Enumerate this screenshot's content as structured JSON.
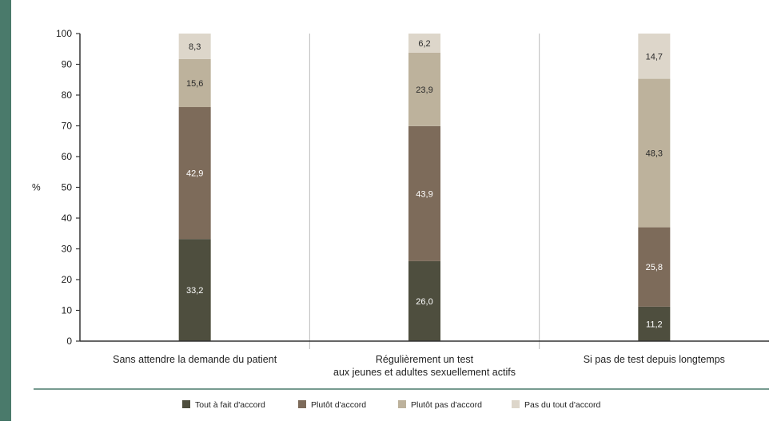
{
  "colors": {
    "side_bar": "#4a7a6b",
    "axis": "#333333",
    "divider": "#bbbbbb",
    "footer_line": "#4a7a6b"
  },
  "chart_data": {
    "type": "bar",
    "stacked": true,
    "ylabel": "%",
    "ylim": [
      0,
      100
    ],
    "yticks": [
      0,
      10,
      20,
      30,
      40,
      50,
      60,
      70,
      80,
      90,
      100
    ],
    "grid": false,
    "legend_position": "bottom",
    "categories": [
      [
        "Sans attendre la demande du patient"
      ],
      [
        "Régulièrement un test",
        "aux jeunes et adultes sexuellement actifs"
      ],
      [
        "Si pas de test depuis longtemps"
      ]
    ],
    "series": [
      {
        "name": "Tout à fait d'accord",
        "color": "#4e4e3e",
        "values": [
          33.2,
          26.0,
          11.2
        ],
        "labels": [
          "33,2",
          "26,0",
          "11,2"
        ],
        "label_color": "#ffffff"
      },
      {
        "name": "Plutôt d'accord",
        "color": "#7d6b5a",
        "values": [
          42.9,
          43.9,
          25.8
        ],
        "labels": [
          "42,9",
          "43,9",
          "25,8"
        ],
        "label_color": "#ffffff"
      },
      {
        "name": "Plutôt pas d'accord",
        "color": "#bdb29c",
        "values": [
          15.6,
          23.9,
          48.3
        ],
        "labels": [
          "15,6",
          "23,9",
          "48,3"
        ],
        "label_color": "#2a2a2a"
      },
      {
        "name": "Pas du tout d'accord",
        "color": "#ddd6ca",
        "values": [
          8.3,
          6.2,
          14.7
        ],
        "labels": [
          "8,3",
          "6,2",
          "14,7"
        ],
        "label_color": "#2a2a2a"
      }
    ]
  }
}
